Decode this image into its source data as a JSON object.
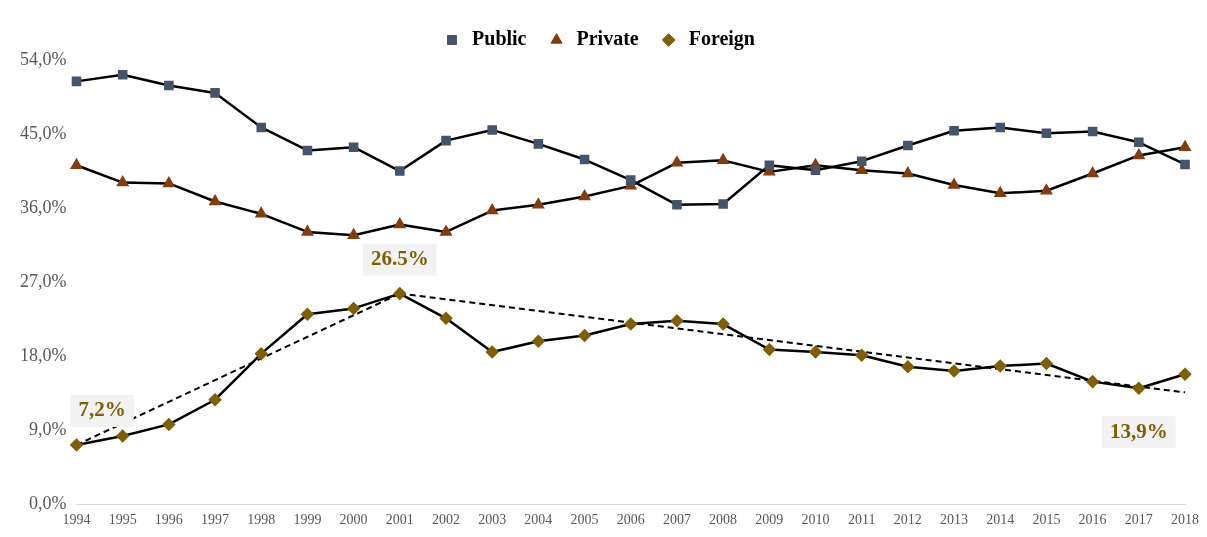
{
  "chart_data": {
    "type": "line",
    "categories": [
      "1994",
      "1995",
      "1996",
      "1997",
      "1998",
      "1999",
      "2000",
      "2001",
      "2002",
      "2003",
      "2004",
      "2005",
      "2006",
      "2007",
      "2008",
      "2009",
      "2010",
      "2011",
      "2012",
      "2013",
      "2014",
      "2015",
      "2016",
      "2017",
      "2018"
    ],
    "series": [
      {
        "name": "Public",
        "color": "#44546a",
        "marker": "square",
        "values": [
          51.4,
          52.2,
          50.9,
          50.0,
          45.8,
          43.0,
          43.4,
          40.5,
          44.2,
          45.5,
          43.8,
          41.9,
          39.4,
          36.4,
          36.5,
          41.2,
          40.6,
          41.7,
          43.6,
          45.4,
          45.8,
          45.1,
          45.3,
          44.0,
          41.3
        ]
      },
      {
        "name": "Private",
        "color": "#843c0c",
        "marker": "triangle",
        "values": [
          41.2,
          39.1,
          39.0,
          36.8,
          35.3,
          33.1,
          32.7,
          34.0,
          33.1,
          35.7,
          36.4,
          37.4,
          38.7,
          41.5,
          41.8,
          40.4,
          41.2,
          40.6,
          40.2,
          38.8,
          37.8,
          38.1,
          40.2,
          42.4,
          43.4
        ]
      },
      {
        "name": "Foreign",
        "color": "#7f6000",
        "marker": "diamond",
        "values": [
          7.2,
          8.3,
          9.7,
          12.7,
          18.3,
          23.1,
          23.8,
          25.6,
          22.6,
          18.5,
          19.8,
          20.5,
          21.9,
          22.3,
          21.9,
          18.8,
          18.5,
          18.1,
          16.7,
          16.2,
          16.8,
          17.1,
          14.9,
          14.1,
          15.8
        ]
      },
      {
        "type": "line",
        "color": "#000000",
        "marker": "none",
        "line_style": "dashed",
        "values": [
          7.2,
          null,
          null,
          null,
          null,
          null,
          null,
          25.6,
          null,
          null,
          null,
          null,
          null,
          null,
          null,
          null,
          null,
          null,
          null,
          null,
          null,
          null,
          null,
          null,
          null
        ]
      },
      {
        "type": "line",
        "color": "#000000",
        "marker": "none",
        "line_style": "dashed",
        "values": [
          null,
          null,
          null,
          null,
          null,
          null,
          null,
          25.6,
          null,
          null,
          null,
          null,
          null,
          null,
          null,
          null,
          null,
          null,
          null,
          null,
          null,
          null,
          null,
          null,
          13.6
        ]
      }
    ],
    "ylim": [
      0,
      54
    ],
    "yticks": [
      {
        "value": 0,
        "label": "0,0%"
      },
      {
        "value": 9,
        "label": "9,0%"
      },
      {
        "value": 18,
        "label": "18,0%"
      },
      {
        "value": 27,
        "label": "27,0%"
      },
      {
        "value": 36,
        "label": "36,0%"
      },
      {
        "value": 45,
        "label": "45,0%"
      },
      {
        "value": 54,
        "label": "54,0%"
      }
    ],
    "grid": false,
    "legend": "top",
    "annotations": [
      {
        "text": "7,2%",
        "x": "1994",
        "y": 7.2
      },
      {
        "text": "26.5%",
        "x": "2001",
        "y": 25.6
      },
      {
        "text": "13,9%",
        "x": "2017",
        "y": 14.1
      }
    ]
  }
}
